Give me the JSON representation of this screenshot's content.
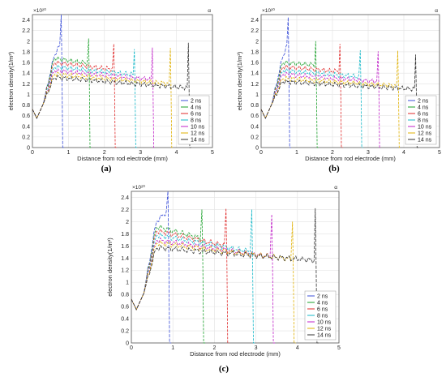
{
  "charts": [
    {
      "id": "a",
      "panel_caption": "(a)",
      "corner_mark": "α",
      "multiplier_label": "×10²⁰",
      "xlabel": "Distance from rod electrode (mm)",
      "ylabel": "electron density(1/m³)",
      "legend": [
        "2 ns",
        "4 ns",
        "6 ns",
        "8 ns",
        "10 ns",
        "12 ns",
        "14 ns"
      ],
      "xticks": [
        "0",
        "1",
        "2",
        "3",
        "4",
        "5"
      ],
      "yticks": [
        "0",
        "0.2",
        "0.4",
        "0.6",
        "0.8",
        "1",
        "1.2",
        "1.4",
        "1.6",
        "1.8",
        "2",
        "2.2",
        "2.4"
      ]
    },
    {
      "id": "b",
      "panel_caption": "(b)",
      "corner_mark": "α",
      "multiplier_label": "×10²⁰",
      "xlabel": "Distance from rod electrode (mm)",
      "ylabel": "electron density(1/m³)",
      "legend": [
        "2 ns",
        "4 ns",
        "6 ns",
        "8 ns",
        "10 ns",
        "12 ns",
        "14 ns"
      ],
      "xticks": [
        "0",
        "1",
        "2",
        "3",
        "4",
        "5"
      ],
      "yticks": [
        "0",
        "0.2",
        "0.4",
        "0.6",
        "0.8",
        "1",
        "1.2",
        "1.4",
        "1.6",
        "1.8",
        "2",
        "2.2",
        "2.4"
      ]
    },
    {
      "id": "c",
      "panel_caption": "(c)",
      "corner_mark": "α",
      "multiplier_label": "×10²⁰",
      "xlabel": "Distance from rod electrode (mm)",
      "ylabel": "electron density(1/m³)",
      "legend": [
        "2 ns",
        "4 ns",
        "6 ns",
        "8 ns",
        "10 ns",
        "12 ns",
        "14 ns"
      ],
      "xticks": [
        "0",
        "1",
        "2",
        "3",
        "4",
        "5"
      ],
      "yticks": [
        "0",
        "0.2",
        "0.4",
        "0.6",
        "0.8",
        "1",
        "1.2",
        "1.4",
        "1.6",
        "1.8",
        "2",
        "2.2",
        "2.4"
      ]
    }
  ],
  "series_colors": [
    "#3b4fd8",
    "#1aa02a",
    "#e02a2a",
    "#14b8c8",
    "#c020c8",
    "#e0b000",
    "#333333"
  ],
  "chart_data": [
    {
      "type": "line",
      "panel": "a",
      "xlim": [
        0,
        5
      ],
      "ylim": [
        0,
        2.5
      ],
      "unit_scale": "1e20",
      "series": [
        {
          "name": "2 ns",
          "front_x": 0.82,
          "peak": 2.5,
          "plateau_start": 1.72,
          "plateau_end": 2.0
        },
        {
          "name": "4 ns",
          "front_x": 1.58,
          "peak": 2.05,
          "plateau_start": 1.68,
          "plateau_end": 1.58
        },
        {
          "name": "6 ns",
          "front_x": 2.28,
          "peak": 1.95,
          "plateau_start": 1.6,
          "plateau_end": 1.47
        },
        {
          "name": "8 ns",
          "front_x": 2.85,
          "peak": 1.85,
          "plateau_start": 1.52,
          "plateau_end": 1.37
        },
        {
          "name": "10 ns",
          "front_x": 3.35,
          "peak": 1.88,
          "plateau_start": 1.45,
          "plateau_end": 1.28
        },
        {
          "name": "12 ns",
          "front_x": 3.85,
          "peak": 1.87,
          "plateau_start": 1.38,
          "plateau_end": 1.2
        },
        {
          "name": "14 ns",
          "front_x": 4.35,
          "peak": 1.97,
          "plateau_start": 1.32,
          "plateau_end": 1.12
        }
      ]
    },
    {
      "type": "line",
      "panel": "b",
      "xlim": [
        0,
        5
      ],
      "ylim": [
        0,
        2.5
      ],
      "unit_scale": "1e20",
      "series": [
        {
          "name": "2 ns",
          "front_x": 0.78,
          "peak": 2.45,
          "plateau_start": 1.7,
          "plateau_end": 2.0
        },
        {
          "name": "4 ns",
          "front_x": 1.55,
          "peak": 2.0,
          "plateau_start": 1.6,
          "plateau_end": 1.55
        },
        {
          "name": "6 ns",
          "front_x": 2.23,
          "peak": 1.95,
          "plateau_start": 1.52,
          "plateau_end": 1.43
        },
        {
          "name": "8 ns",
          "front_x": 2.8,
          "peak": 1.83,
          "plateau_start": 1.45,
          "plateau_end": 1.33
        },
        {
          "name": "10 ns",
          "front_x": 3.3,
          "peak": 1.81,
          "plateau_start": 1.38,
          "plateau_end": 1.24
        },
        {
          "name": "12 ns",
          "front_x": 3.85,
          "peak": 1.82,
          "plateau_start": 1.3,
          "plateau_end": 1.16
        },
        {
          "name": "14 ns",
          "front_x": 4.35,
          "peak": 1.75,
          "plateau_start": 1.24,
          "plateau_end": 1.1
        }
      ]
    },
    {
      "type": "line",
      "panel": "c",
      "xlim": [
        0,
        5
      ],
      "ylim": [
        0,
        2.5
      ],
      "unit_scale": "1e20",
      "series": [
        {
          "name": "2 ns",
          "front_x": 0.9,
          "peak": 2.5,
          "plateau_start": 2.0,
          "plateau_end": 2.2
        },
        {
          "name": "4 ns",
          "front_x": 1.72,
          "peak": 2.2,
          "plateau_start": 1.92,
          "plateau_end": 1.72
        },
        {
          "name": "6 ns",
          "front_x": 2.3,
          "peak": 2.22,
          "plateau_start": 1.85,
          "plateau_end": 1.6
        },
        {
          "name": "8 ns",
          "front_x": 2.92,
          "peak": 2.2,
          "plateau_start": 1.78,
          "plateau_end": 1.5
        },
        {
          "name": "10 ns",
          "front_x": 3.4,
          "peak": 2.12,
          "plateau_start": 1.7,
          "plateau_end": 1.42
        },
        {
          "name": "12 ns",
          "front_x": 3.9,
          "peak": 2.0,
          "plateau_start": 1.65,
          "plateau_end": 1.38
        },
        {
          "name": "14 ns",
          "front_x": 4.45,
          "peak": 2.22,
          "plateau_start": 1.57,
          "plateau_end": 1.36
        }
      ]
    }
  ]
}
